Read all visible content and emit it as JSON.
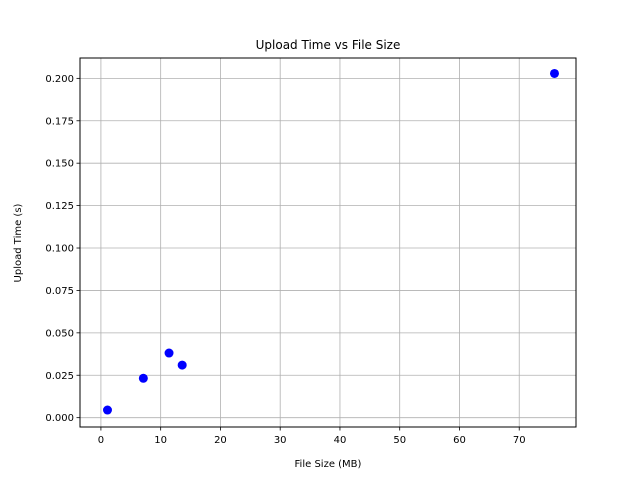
{
  "chart_data": {
    "type": "scatter",
    "title": "Upload Time vs File Size",
    "xlabel": "File Size (MB)",
    "ylabel": "Upload Time (s)",
    "xlim": [
      -3.5,
      79.5
    ],
    "ylim": [
      -0.0055,
      0.212
    ],
    "xticks": [
      0,
      10,
      20,
      30,
      40,
      50,
      60,
      70
    ],
    "xtick_labels": [
      "0",
      "10",
      "20",
      "30",
      "40",
      "50",
      "60",
      "70"
    ],
    "yticks": [
      0.0,
      0.025,
      0.05,
      0.075,
      0.1,
      0.125,
      0.15,
      0.175,
      0.2
    ],
    "ytick_labels": [
      "0.000",
      "0.025",
      "0.050",
      "0.075",
      "0.100",
      "0.125",
      "0.150",
      "0.175",
      "0.200"
    ],
    "grid": true,
    "legend": "none",
    "marker_color": "#0000ff",
    "series": [
      {
        "points": [
          {
            "x": 1.1,
            "y": 0.0045
          },
          {
            "x": 7.1,
            "y": 0.0232
          },
          {
            "x": 11.4,
            "y": 0.0381
          },
          {
            "x": 13.6,
            "y": 0.031
          },
          {
            "x": 75.9,
            "y": 0.2029
          }
        ]
      }
    ]
  }
}
